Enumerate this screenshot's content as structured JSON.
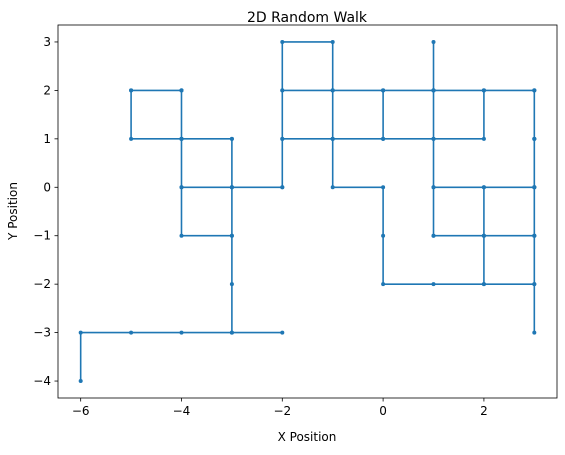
{
  "chart_data": {
    "type": "line",
    "title": "2D Random Walk",
    "xlabel": "X Position",
    "ylabel": "Y Position",
    "xlim": [
      -6.45,
      3.45
    ],
    "ylim": [
      -4.35,
      3.35
    ],
    "x_ticks": [
      -6,
      -4,
      -2,
      0,
      2
    ],
    "y_ticks": [
      -4,
      -3,
      -2,
      -1,
      0,
      1,
      2,
      3
    ],
    "grid": false,
    "series": [
      {
        "color": "#1f77b4",
        "marker": "circle",
        "points": [
          [
            -6,
            -4
          ],
          [
            -6,
            -3
          ],
          [
            -5,
            -3
          ],
          [
            -4,
            -3
          ],
          [
            -3,
            -3
          ],
          [
            -2,
            -3
          ],
          [
            -3,
            -3
          ],
          [
            -3,
            -2
          ],
          [
            -3,
            -1
          ],
          [
            -4,
            -1
          ],
          [
            -4,
            0
          ],
          [
            -4,
            1
          ],
          [
            -4,
            2
          ],
          [
            -5,
            2
          ],
          [
            -5,
            1
          ],
          [
            -4,
            1
          ],
          [
            -3,
            1
          ],
          [
            -3,
            0
          ],
          [
            -2,
            0
          ],
          [
            -3,
            0
          ],
          [
            -3,
            -1
          ],
          [
            -3,
            0
          ],
          [
            -4,
            0
          ],
          [
            -4,
            1
          ],
          [
            -4,
            2
          ],
          [
            -5,
            2
          ],
          [
            -4,
            2
          ],
          [
            -4,
            1
          ],
          [
            -3,
            1
          ],
          [
            -3,
            0
          ],
          [
            -2,
            0
          ],
          [
            -2,
            1
          ],
          [
            -1,
            1
          ],
          [
            -1,
            0
          ],
          [
            0,
            0
          ],
          [
            0,
            -1
          ],
          [
            0,
            -2
          ],
          [
            1,
            -2
          ],
          [
            2,
            -2
          ],
          [
            2,
            -1
          ],
          [
            1,
            -1
          ],
          [
            1,
            0
          ],
          [
            2,
            0
          ],
          [
            3,
            0
          ],
          [
            3,
            -1
          ],
          [
            2,
            -1
          ],
          [
            2,
            0
          ],
          [
            3,
            0
          ],
          [
            3,
            1
          ],
          [
            3,
            2
          ],
          [
            2,
            2
          ],
          [
            2,
            1
          ],
          [
            1,
            1
          ],
          [
            0,
            1
          ],
          [
            -1,
            1
          ],
          [
            -2,
            1
          ],
          [
            -2,
            2
          ],
          [
            -1,
            2
          ],
          [
            0,
            2
          ],
          [
            1,
            2
          ],
          [
            2,
            2
          ],
          [
            3,
            2
          ],
          [
            3,
            1
          ],
          [
            3,
            0
          ],
          [
            3,
            -1
          ],
          [
            3,
            -2
          ],
          [
            2,
            -2
          ],
          [
            2,
            -1
          ],
          [
            1,
            -1
          ],
          [
            1,
            0
          ],
          [
            1,
            1
          ],
          [
            1,
            2
          ],
          [
            1,
            3
          ],
          [
            1,
            2
          ],
          [
            0,
            2
          ],
          [
            0,
            1
          ],
          [
            -1,
            1
          ],
          [
            -1,
            2
          ],
          [
            -2,
            2
          ],
          [
            -2,
            3
          ],
          [
            -1,
            3
          ],
          [
            -1,
            2
          ],
          [
            0,
            2
          ],
          [
            1,
            2
          ],
          [
            2,
            2
          ],
          [
            3,
            2
          ],
          [
            3,
            1
          ],
          [
            3,
            0
          ],
          [
            3,
            -1
          ],
          [
            3,
            -2
          ],
          [
            3,
            -3
          ]
        ]
      }
    ]
  }
}
